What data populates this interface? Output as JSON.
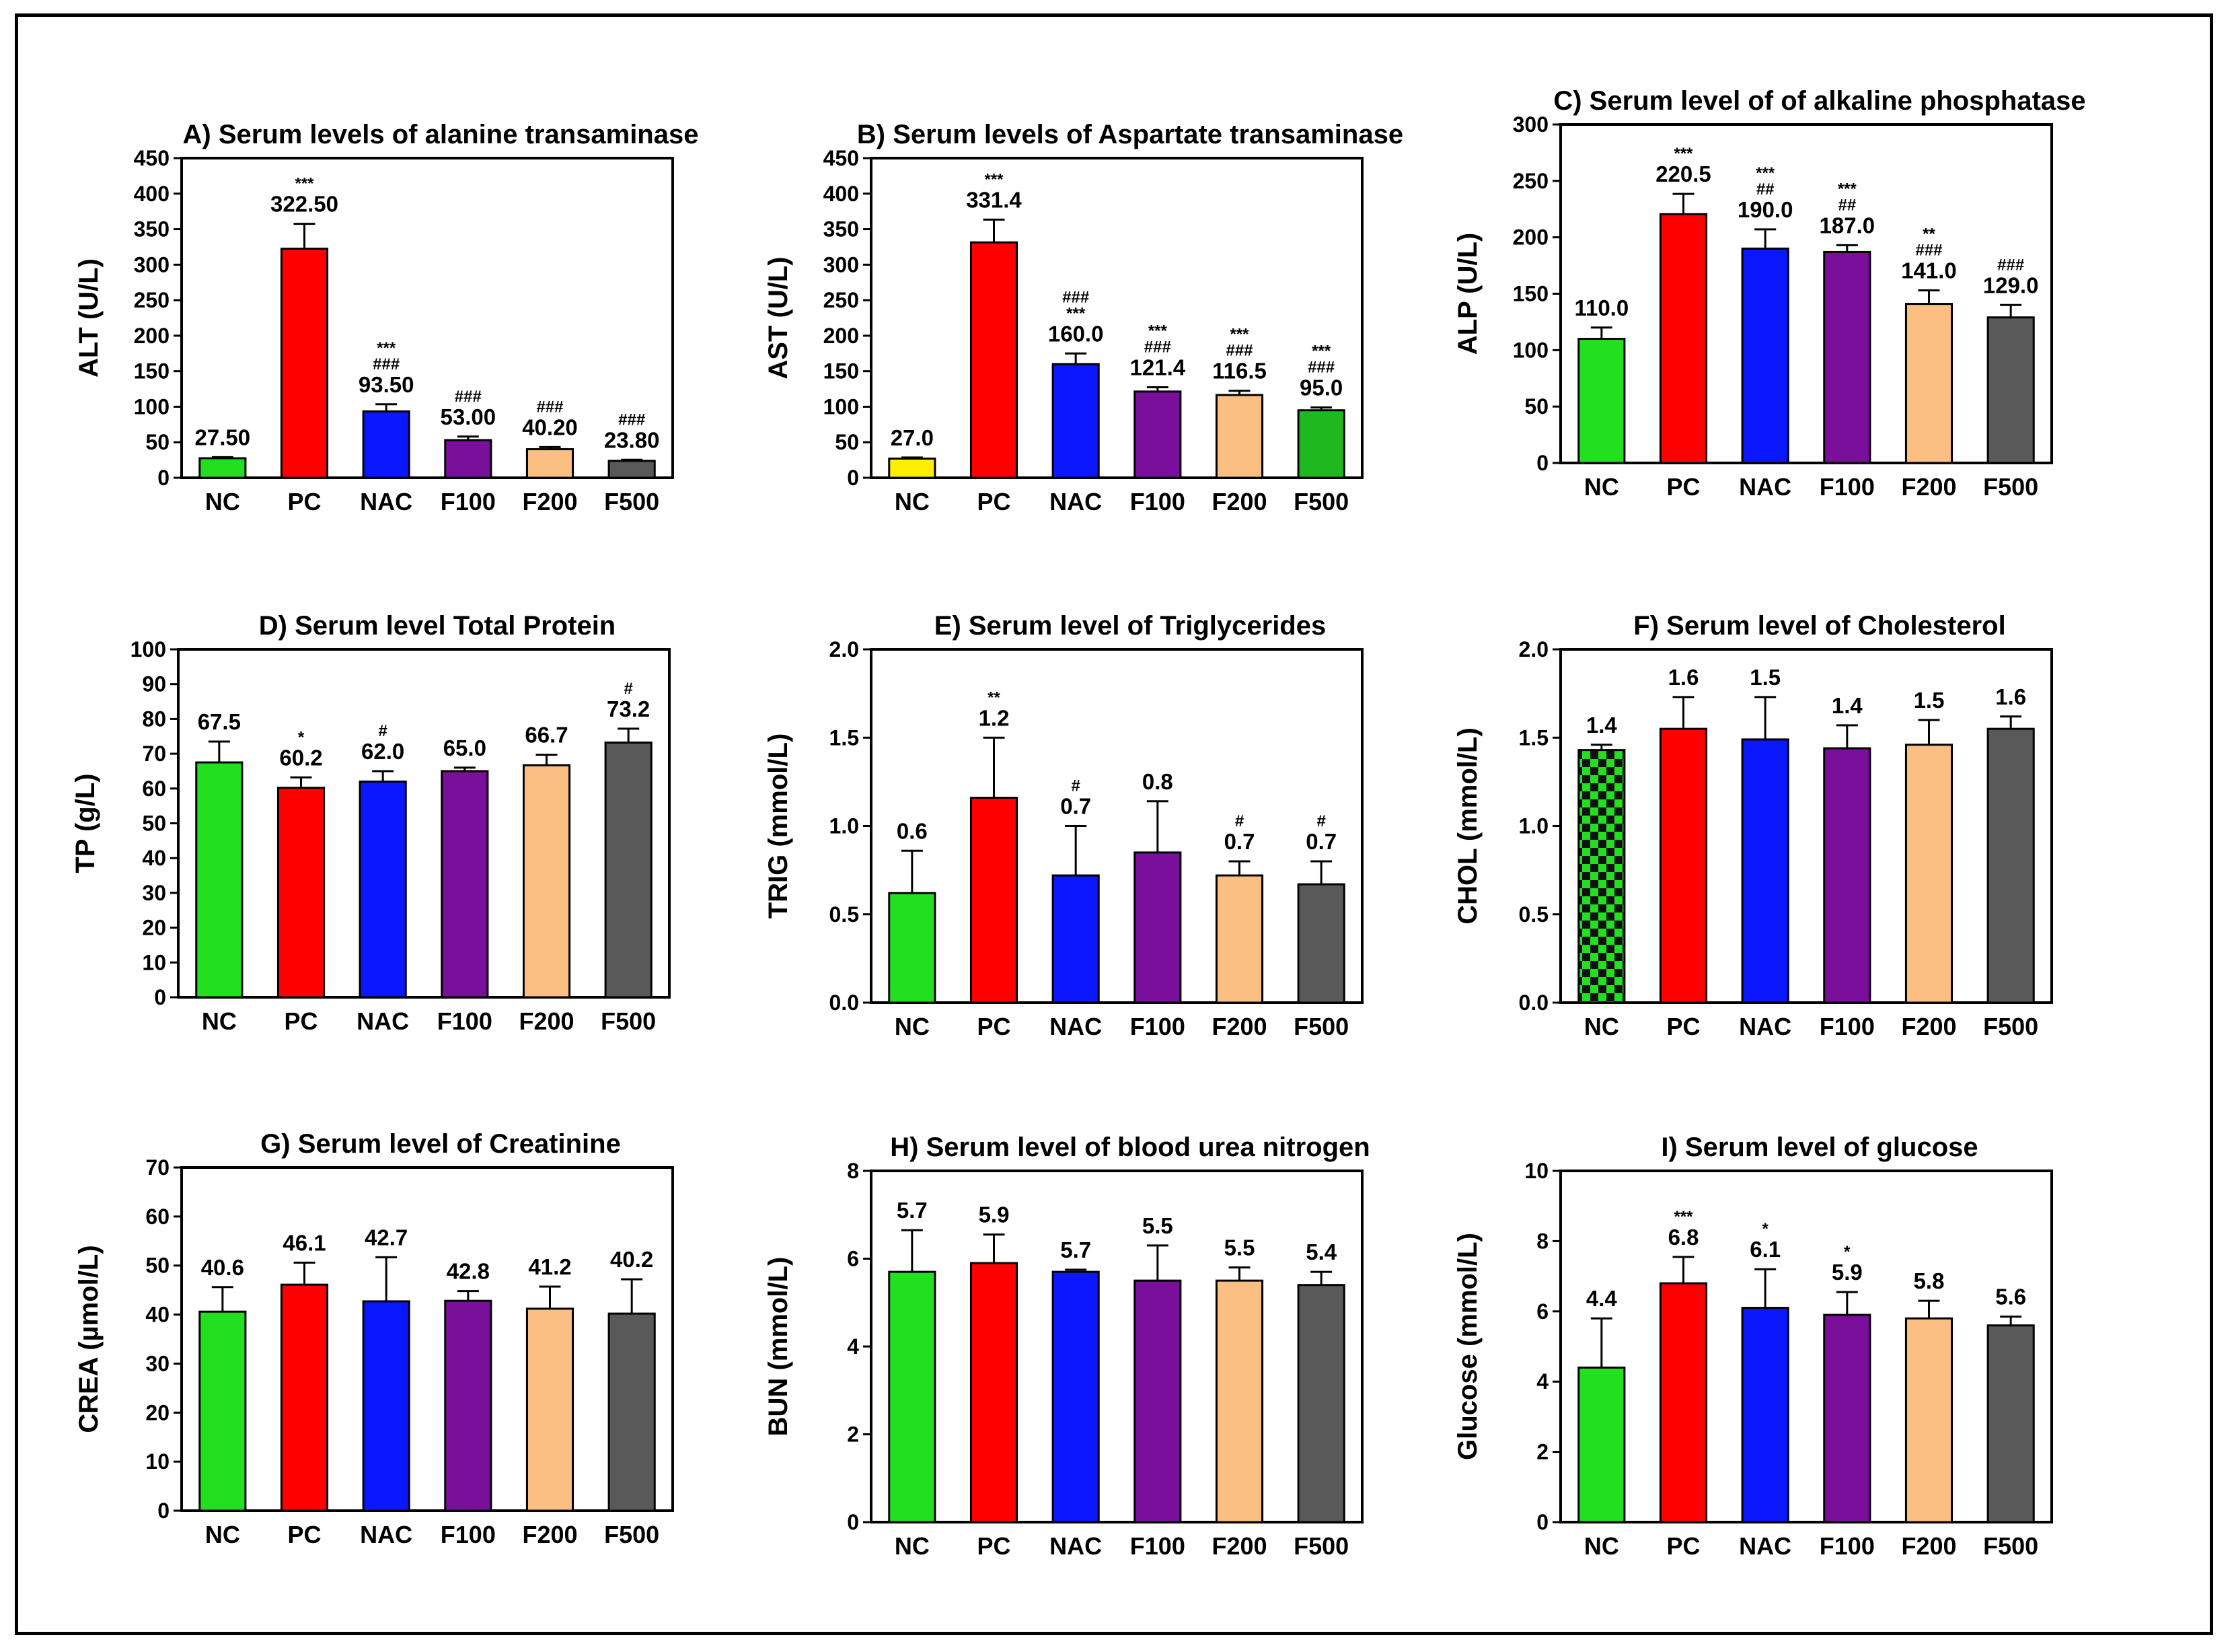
{
  "chart_data": [
    {
      "id": "A",
      "type": "bar",
      "title": "A) Serum levels of alanine transaminase",
      "ylabel": "ALT (U/L)",
      "ylim": [
        0,
        450
      ],
      "yticks": [
        0,
        50,
        100,
        150,
        200,
        250,
        300,
        350,
        400,
        450
      ],
      "categories": [
        "NC",
        "PC",
        "NAC",
        "F100",
        "F200",
        "F500"
      ],
      "values": [
        27.5,
        322.5,
        93.5,
        53.0,
        40.2,
        23.8
      ],
      "errors": [
        1.5,
        35,
        10,
        5,
        3,
        1.5
      ],
      "value_labels": [
        "27.50",
        "322.50",
        "93.50",
        "53.00",
        "40.20",
        "23.80"
      ],
      "significance": [
        [],
        [
          "***"
        ],
        [
          "***",
          "###"
        ],
        [
          "###"
        ],
        [
          "###"
        ],
        [
          "###"
        ]
      ],
      "colors": [
        "#22e01f",
        "#ff0000",
        "#0a17ff",
        "#7a0f9b",
        "#fbbf82",
        "#595959"
      ]
    },
    {
      "id": "B",
      "type": "bar",
      "title": "B) Serum levels of Aspartate transaminase",
      "ylabel": "AST (U/L)",
      "ylim": [
        0,
        450
      ],
      "yticks": [
        0,
        50,
        100,
        150,
        200,
        250,
        300,
        350,
        400,
        450
      ],
      "categories": [
        "NC",
        "PC",
        "NAC",
        "F100",
        "F200",
        "F500"
      ],
      "values": [
        27.0,
        331.4,
        160.0,
        121.4,
        116.5,
        95.0
      ],
      "errors": [
        1.5,
        32,
        15,
        6,
        6,
        4
      ],
      "value_labels": [
        "27.0",
        "331.4",
        "160.0",
        "121.4",
        "116.5",
        "95.0"
      ],
      "significance": [
        [],
        [
          "***"
        ],
        [
          "###",
          "***"
        ],
        [
          "***",
          "###"
        ],
        [
          "***",
          "###"
        ],
        [
          "***",
          "###"
        ]
      ],
      "colors": [
        "#ffee00",
        "#ff0000",
        "#0a17ff",
        "#7a0f9b",
        "#fbbf82",
        "#1fb81f"
      ]
    },
    {
      "id": "C",
      "type": "bar",
      "title": "C) Serum level of of alkaline phosphatase",
      "ylabel": "ALP (U/L)",
      "ylim": [
        0,
        300
      ],
      "yticks": [
        0,
        50,
        100,
        150,
        200,
        250,
        300
      ],
      "categories": [
        "NC",
        "PC",
        "NAC",
        "F100",
        "F200",
        "F500"
      ],
      "values": [
        110.0,
        220.5,
        190.0,
        187.0,
        141.0,
        129.0
      ],
      "errors": [
        10,
        18,
        17,
        6,
        12,
        11
      ],
      "value_labels": [
        "110.0",
        "220.5",
        "190.0",
        "187.0",
        "141.0",
        "129.0"
      ],
      "significance": [
        [],
        [
          "***"
        ],
        [
          "***",
          "##"
        ],
        [
          "***",
          "##"
        ],
        [
          "**",
          "###"
        ],
        [
          "###"
        ]
      ],
      "colors": [
        "#22e01f",
        "#ff0000",
        "#0a17ff",
        "#7a0f9b",
        "#fbbf82",
        "#595959"
      ]
    },
    {
      "id": "D",
      "type": "bar",
      "title": "D) Serum level Total Protein",
      "ylabel": "TP (g/L)",
      "ylim": [
        0,
        100
      ],
      "yticks": [
        0,
        10,
        20,
        30,
        40,
        50,
        60,
        70,
        80,
        90,
        100
      ],
      "categories": [
        "NC",
        "PC",
        "NAC",
        "F100",
        "F200",
        "F500"
      ],
      "values": [
        67.5,
        60.2,
        62.0,
        65.0,
        66.7,
        73.2
      ],
      "errors": [
        6,
        3,
        3,
        1,
        3,
        4
      ],
      "value_labels": [
        "67.5",
        "60.2",
        "62.0",
        "65.0",
        "66.7",
        "73.2"
      ],
      "significance": [
        [],
        [
          "*"
        ],
        [
          "#"
        ],
        [],
        [],
        [
          "#"
        ]
      ],
      "colors": [
        "#22e01f",
        "#ff0000",
        "#0a17ff",
        "#7a0f9b",
        "#fbbf82",
        "#595959"
      ]
    },
    {
      "id": "E",
      "type": "bar",
      "title": "E) Serum level of Triglycerides",
      "ylabel": "TRIG (mmol/L)",
      "ylim": [
        0,
        2.0
      ],
      "yticks": [
        0.0,
        0.5,
        1.0,
        1.5,
        2.0
      ],
      "categories": [
        "NC",
        "PC",
        "NAC",
        "F100",
        "F200",
        "F500"
      ],
      "values": [
        0.62,
        1.16,
        0.72,
        0.85,
        0.72,
        0.67
      ],
      "errors": [
        0.24,
        0.34,
        0.28,
        0.29,
        0.08,
        0.13
      ],
      "value_labels": [
        "0.6",
        "1.2",
        "0.7",
        "0.8",
        "0.7",
        "0.7"
      ],
      "significance": [
        [],
        [
          "**"
        ],
        [
          "#"
        ],
        [],
        [
          "#"
        ],
        [
          "#"
        ]
      ],
      "colors": [
        "#22e01f",
        "#ff0000",
        "#0a17ff",
        "#7a0f9b",
        "#fbbf82",
        "#595959"
      ]
    },
    {
      "id": "F",
      "type": "bar",
      "title": "F) Serum level of Cholesterol",
      "ylabel": "CHOL (mmol/L)",
      "ylim": [
        0,
        2.0
      ],
      "yticks": [
        0.0,
        0.5,
        1.0,
        1.5,
        2.0
      ],
      "categories": [
        "NC",
        "PC",
        "NAC",
        "F100",
        "F200",
        "F500"
      ],
      "values": [
        1.43,
        1.55,
        1.49,
        1.44,
        1.46,
        1.55
      ],
      "errors": [
        0.03,
        0.18,
        0.24,
        0.13,
        0.14,
        0.07
      ],
      "value_labels": [
        "1.4",
        "1.6",
        "1.5",
        "1.4",
        "1.5",
        "1.6"
      ],
      "significance": [
        [],
        [],
        [],
        [],
        [],
        []
      ],
      "colors": [
        "checker",
        "#ff0000",
        "#0a17ff",
        "#7a0f9b",
        "#fbbf82",
        "#595959"
      ]
    },
    {
      "id": "G",
      "type": "bar",
      "title": "G) Serum level of Creatinine",
      "ylabel": "CREA (µmol/L)",
      "ylim": [
        0,
        70
      ],
      "yticks": [
        0,
        10,
        20,
        30,
        40,
        50,
        60,
        70
      ],
      "categories": [
        "NC",
        "PC",
        "NAC",
        "F100",
        "F200",
        "F500"
      ],
      "values": [
        40.6,
        46.1,
        42.7,
        42.8,
        41.2,
        40.2
      ],
      "errors": [
        5,
        4.5,
        9,
        2,
        4.5,
        7
      ],
      "value_labels": [
        "40.6",
        "46.1",
        "42.7",
        "42.8",
        "41.2",
        "40.2"
      ],
      "significance": [
        [],
        [],
        [],
        [],
        [],
        []
      ],
      "colors": [
        "#22e01f",
        "#ff0000",
        "#0a17ff",
        "#7a0f9b",
        "#fbbf82",
        "#595959"
      ]
    },
    {
      "id": "H",
      "type": "bar",
      "title": "H) Serum level of blood urea nitrogen",
      "ylabel": "BUN (mmol/L)",
      "ylim": [
        0,
        8
      ],
      "yticks": [
        0,
        2,
        4,
        6,
        8
      ],
      "categories": [
        "NC",
        "PC",
        "NAC",
        "F100",
        "F200",
        "F500"
      ],
      "values": [
        5.7,
        5.9,
        5.7,
        5.5,
        5.5,
        5.4
      ],
      "errors": [
        0.95,
        0.65,
        0.05,
        0.8,
        0.3,
        0.3
      ],
      "value_labels": [
        "5.7",
        "5.9",
        "5.7",
        "5.5",
        "5.5",
        "5.4"
      ],
      "significance": [
        [],
        [],
        [],
        [],
        [],
        []
      ],
      "colors": [
        "#22e01f",
        "#ff0000",
        "#0a17ff",
        "#7a0f9b",
        "#fbbf82",
        "#595959"
      ]
    },
    {
      "id": "I",
      "type": "bar",
      "title": "I) Serum level of glucose",
      "ylabel": "Glucose (mmol/L)",
      "ylim": [
        0,
        10
      ],
      "yticks": [
        0,
        2,
        4,
        6,
        8,
        10
      ],
      "categories": [
        "NC",
        "PC",
        "NAC",
        "F100",
        "F200",
        "F500"
      ],
      "values": [
        4.4,
        6.8,
        6.1,
        5.9,
        5.8,
        5.6
      ],
      "errors": [
        1.4,
        0.75,
        1.1,
        0.65,
        0.5,
        0.25
      ],
      "value_labels": [
        "4.4",
        "6.8",
        "6.1",
        "5.9",
        "5.8",
        "5.6"
      ],
      "significance": [
        [],
        [
          "***"
        ],
        [
          "*"
        ],
        [
          "*"
        ],
        [],
        []
      ],
      "colors": [
        "#22e01f",
        "#ff0000",
        "#0a17ff",
        "#7a0f9b",
        "#fbbf82",
        "#595959"
      ]
    }
  ]
}
